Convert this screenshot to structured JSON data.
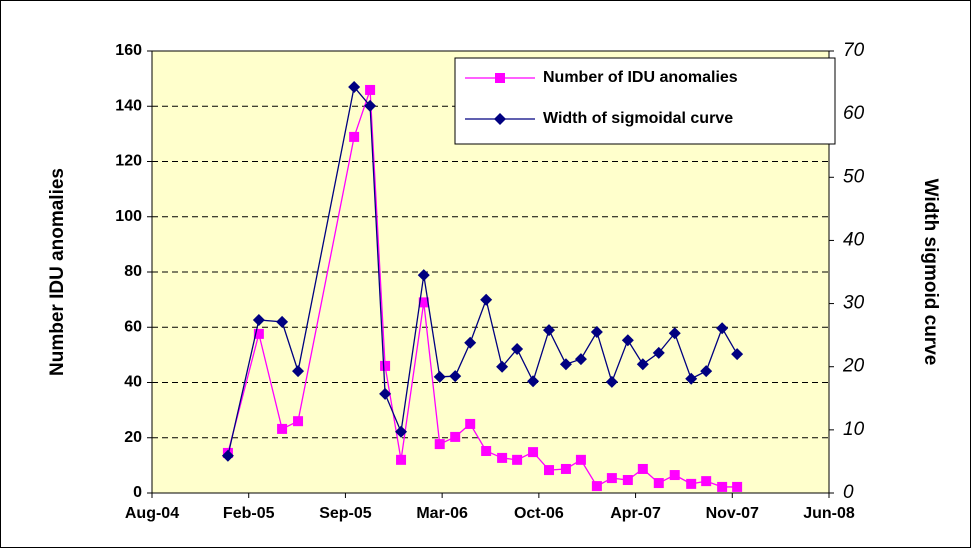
{
  "chart_data": {
    "type": "line",
    "x": [
      38357,
      38421,
      38469,
      38502,
      38618,
      38651,
      38682,
      38715,
      38762,
      38795,
      38827,
      38858,
      38891,
      38924,
      38955,
      38988,
      39021,
      39056,
      39087,
      39120,
      39151,
      39184,
      39215,
      39248,
      39281,
      39315,
      39346,
      39379,
      39410
    ],
    "series": [
      {
        "name": "Number of IDU anomalies",
        "color": "#ff00ff",
        "marker": "square",
        "values": [
          14.5,
          57.6,
          23.2,
          26,
          128.9,
          145.9,
          46,
          12,
          69,
          17.7,
          20.3,
          25,
          15.2,
          12.7,
          12,
          14.8,
          8.3,
          8.7,
          12,
          2.5,
          5.4,
          4.7,
          8.7,
          3.6,
          6.5,
          3.3,
          4.3,
          2.2,
          2.2
        ]
      },
      {
        "name": "Width of sigmoidal curve",
        "color": "#000080",
        "marker": "diamond",
        "axis": "y2",
        "values": [
          5.9,
          27.4,
          27.1,
          19.3,
          64.3,
          61.3,
          15.7,
          9.7,
          34.5,
          18.4,
          18.5,
          23.8,
          30.6,
          20,
          22.8,
          17.7,
          25.8,
          20.4,
          21.2,
          25.5,
          17.6,
          24.2,
          20.4,
          22.2,
          25.3,
          18.1,
          19.3,
          26.1,
          22
        ]
      }
    ],
    "xlim": [
      38200,
      39600
    ],
    "xticks": [
      {
        "value": 38200,
        "label": "Aug-04"
      },
      {
        "value": 38400,
        "label": "Feb-05"
      },
      {
        "value": 38600,
        "label": "Sep-05"
      },
      {
        "value": 38800,
        "label": "Mar-06"
      },
      {
        "value": 39000,
        "label": "Oct-06"
      },
      {
        "value": 39200,
        "label": "Apr-07"
      },
      {
        "value": 39400,
        "label": "Nov-07"
      },
      {
        "value": 39600,
        "label": "Jun-08"
      }
    ],
    "ylim": [
      0,
      160
    ],
    "yticks": [
      0,
      20,
      40,
      60,
      80,
      100,
      120,
      140,
      160
    ],
    "y2lim": [
      0,
      70
    ],
    "y2ticks": [
      0,
      10,
      20,
      30,
      40,
      50,
      60,
      70
    ],
    "ylabel": "Number IDU anomalies",
    "y2label": "Width sigmoid curve",
    "grid": true,
    "legend": "upper right",
    "background": "#ffffcc"
  }
}
